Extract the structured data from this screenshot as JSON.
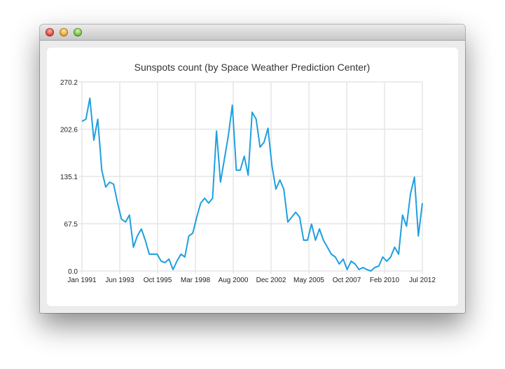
{
  "window": {
    "buttons": [
      "close",
      "minimize",
      "zoom"
    ]
  },
  "chart_data": {
    "type": "line",
    "title": "Sunspots count (by Space Weather Prediction Center)",
    "xlabel": "",
    "ylabel": "",
    "x_range": [
      "1991-01",
      "2012-07"
    ],
    "ylim": [
      0.0,
      270.2
    ],
    "x_ticks": [
      "Jan 1991",
      "Jun 1993",
      "Oct 1995",
      "Mar 1998",
      "Aug 2000",
      "Dec 2002",
      "May 2005",
      "Oct 2007",
      "Feb 2010",
      "Jul 2012"
    ],
    "y_ticks": [
      "0.0",
      "67.5",
      "135.1",
      "202.6",
      "270.2"
    ],
    "grid": true,
    "legend": "none",
    "line_color": "#209fdf",
    "x": [
      "1991-01",
      "1991-04",
      "1991-07",
      "1991-10",
      "1992-01",
      "1992-04",
      "1992-07",
      "1992-10",
      "1993-01",
      "1993-04",
      "1993-07",
      "1993-10",
      "1994-01",
      "1994-04",
      "1994-07",
      "1994-10",
      "1995-01",
      "1995-04",
      "1995-07",
      "1995-10",
      "1996-01",
      "1996-04",
      "1996-07",
      "1996-10",
      "1997-01",
      "1997-04",
      "1997-07",
      "1997-10",
      "1998-01",
      "1998-04",
      "1998-07",
      "1998-10",
      "1999-01",
      "1999-04",
      "1999-07",
      "1999-10",
      "2000-01",
      "2000-04",
      "2000-07",
      "2000-10",
      "2001-01",
      "2001-04",
      "2001-07",
      "2001-10",
      "2002-01",
      "2002-04",
      "2002-07",
      "2002-10",
      "2003-01",
      "2003-04",
      "2003-07",
      "2003-10",
      "2004-01",
      "2004-04",
      "2004-07",
      "2004-10",
      "2005-01",
      "2005-04",
      "2005-07",
      "2005-10",
      "2006-01",
      "2006-04",
      "2006-07",
      "2006-10",
      "2007-01",
      "2007-04",
      "2007-07",
      "2007-10",
      "2008-01",
      "2008-04",
      "2008-07",
      "2008-10",
      "2009-01",
      "2009-04",
      "2009-07",
      "2009-10",
      "2010-01",
      "2010-04",
      "2010-07",
      "2010-10",
      "2011-01",
      "2011-04",
      "2011-07",
      "2011-10",
      "2012-01",
      "2012-04",
      "2012-07"
    ],
    "values": [
      214,
      217,
      247,
      187,
      217,
      144,
      120,
      127,
      124,
      97,
      74,
      70,
      80,
      34,
      50,
      60,
      44,
      24,
      24,
      24,
      14,
      12,
      17,
      2,
      14,
      24,
      20,
      50,
      54,
      77,
      97,
      104,
      97,
      104,
      200,
      127,
      160,
      194,
      237,
      144,
      144,
      164,
      137,
      227,
      217,
      177,
      184,
      204,
      150,
      117,
      130,
      117,
      70,
      77,
      84,
      77,
      44,
      44,
      67,
      44,
      60,
      44,
      34,
      24,
      20,
      10,
      17,
      2,
      14,
      10,
      2,
      5,
      2,
      0,
      5,
      7,
      20,
      14,
      20,
      34,
      24,
      80,
      64,
      110,
      134,
      50,
      97
    ]
  }
}
